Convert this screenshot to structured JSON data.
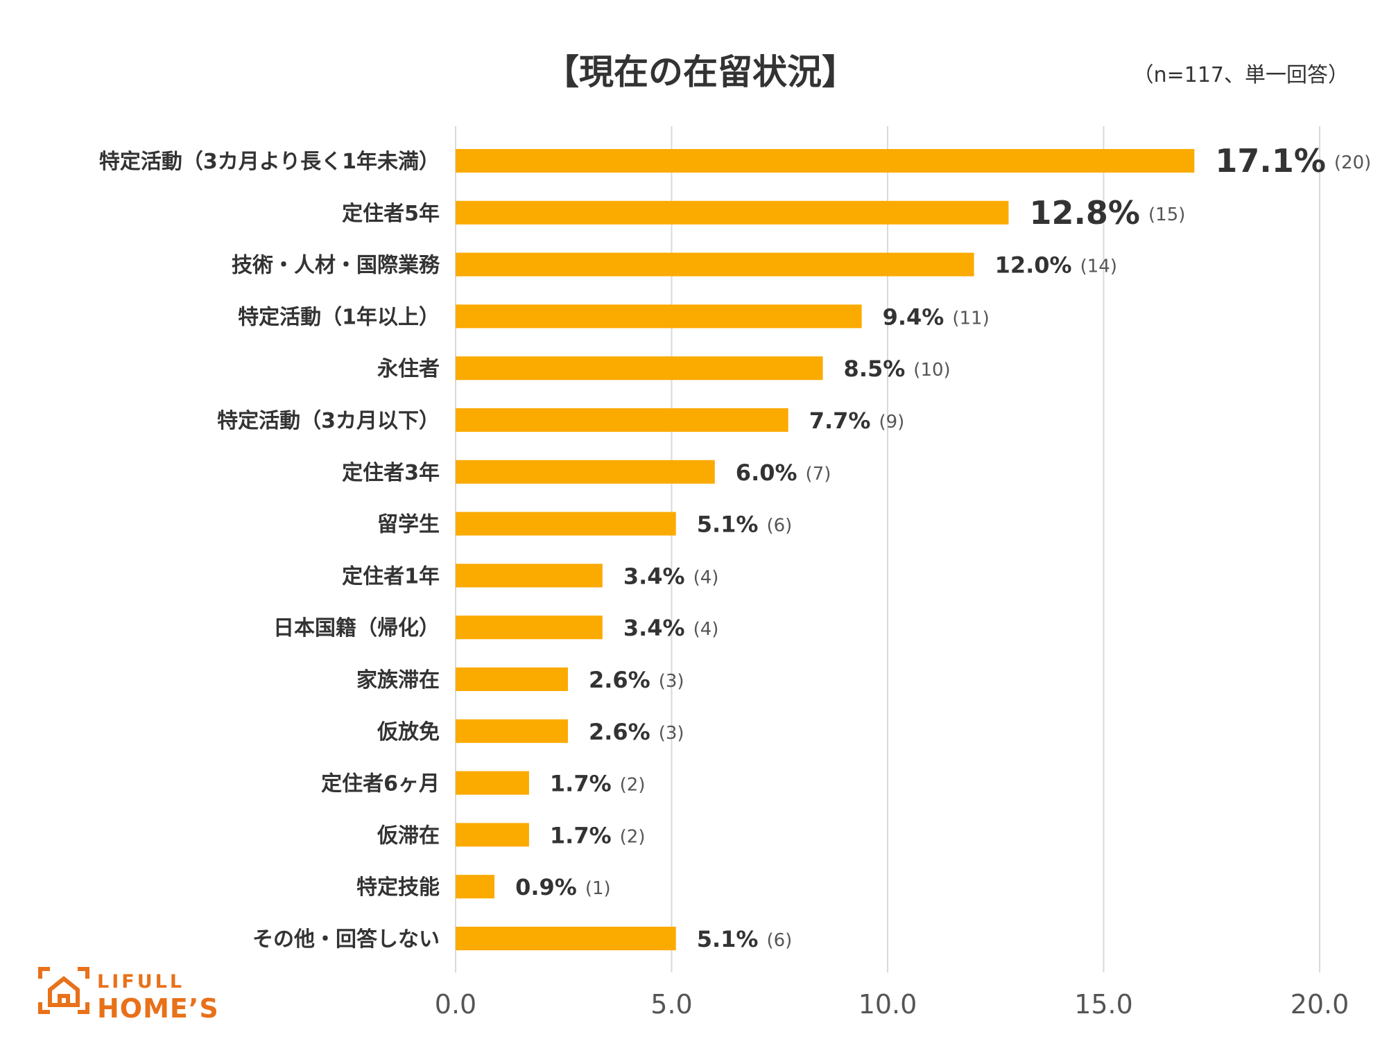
{
  "chart_data": {
    "type": "bar",
    "orientation": "horizontal",
    "title": "【現在の在留状況】",
    "note": "（n=117、単一回答）",
    "categories": [
      "特定活動（3カ月より長く1年未満）",
      "定住者5年",
      "技術・人材・国際業務",
      "特定活動（1年以上）",
      "永住者",
      "特定活動（3カ月以下）",
      "定住者3年",
      "留学生",
      "定住者1年",
      "日本国籍（帰化）",
      "家族滞在",
      "仮放免",
      "定住者6ヶ月",
      "仮滞在",
      "特定技能",
      "その他・回答しない"
    ],
    "values": [
      17.1,
      12.8,
      12.0,
      9.4,
      8.5,
      7.7,
      6.0,
      5.1,
      3.4,
      3.4,
      2.6,
      2.6,
      1.7,
      1.7,
      0.9,
      5.1
    ],
    "value_labels": [
      "17.1%",
      "12.8%",
      "12.0%",
      "9.4%",
      "8.5%",
      "7.7%",
      "6.0%",
      "5.1%",
      "3.4%",
      "3.4%",
      "2.6%",
      "2.6%",
      "1.7%",
      "1.7%",
      "0.9%",
      "5.1%"
    ],
    "counts": [
      "(20)",
      "(15)",
      "(14)",
      "(11)",
      "(10)",
      "(9)",
      "(7)",
      "(6)",
      "(4)",
      "(4)",
      "(3)",
      "(3)",
      "(2)",
      "(2)",
      "(1)",
      "(6)"
    ],
    "highlight_count": 2,
    "xlim": [
      0,
      20
    ],
    "xticks": [
      "0.0",
      "5.0",
      "10.0",
      "15.0",
      "20.0"
    ],
    "xtick_values": [
      0,
      5,
      10,
      15,
      20
    ],
    "grid": true,
    "bar_color": "#FBAA00",
    "highlight_color": "#E8711A",
    "grid_color": "#D9D9D9"
  },
  "logo": {
    "line1": "LIFULL",
    "line2": "HOME’S",
    "color": "#E8711A"
  }
}
